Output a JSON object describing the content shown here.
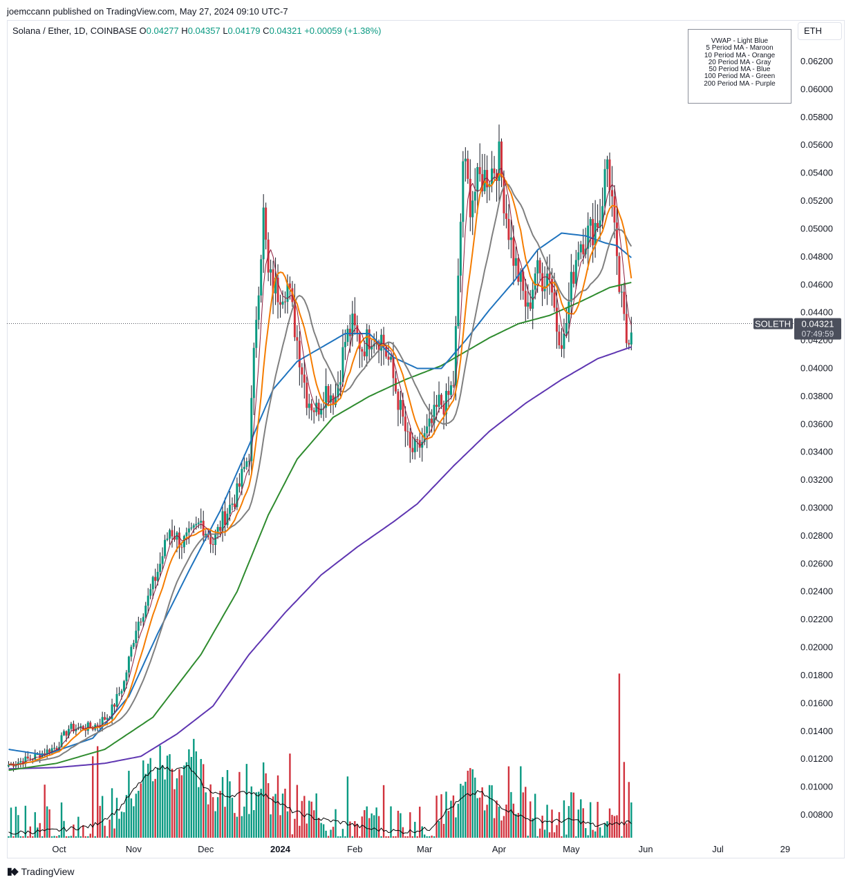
{
  "header": {
    "publisher": "joemccann published on TradingView.com, May 27, 2024 09:10 UTC-7"
  },
  "ohlc": {
    "symbol": "Solana / Ether, 1D, COINBASE",
    "open_label": "O",
    "open": "0.04277",
    "high_label": "H",
    "high": "0.04357",
    "low_label": "L",
    "low": "0.04179",
    "close_label": "C",
    "close": "0.04321",
    "change": "+0.00059 (+1.38%)"
  },
  "currency": "ETH",
  "legend": [
    "VWAP - Light Blue",
    "5 Period MA - Maroon",
    "10 Period MA - Orange",
    "20 Period MA - Gray",
    "50 Period MA - Blue",
    "100 Period MA - Green",
    "200 Period MA - Purple"
  ],
  "price_tag": {
    "ticker": "SOLETH",
    "price": "0.04321",
    "countdown": "07:49:59"
  },
  "footer": {
    "brand": "TradingView",
    "icon": "tradingview-logo-icon"
  },
  "colors": {
    "up": "#089981",
    "down": "#d1323d",
    "ma5": "#8b1a3a",
    "ma10": "#f57c00",
    "ma20": "#7f7f7f",
    "ma50": "#1e73be",
    "ma100": "#2e8b2e",
    "ma200": "#5e35b1",
    "volume_ma": "#000000"
  },
  "chart_data": {
    "type": "candlestick",
    "symbol": "SOLETH",
    "ylim": [
      0.0072,
      0.0653
    ],
    "y_ticks": [
      "0.06200",
      "0.06000",
      "0.05800",
      "0.05600",
      "0.05400",
      "0.05200",
      "0.05000",
      "0.04800",
      "0.04600",
      "0.04400",
      "0.04200",
      "0.04000",
      "0.03800",
      "0.03600",
      "0.03400",
      "0.03200",
      "0.03000",
      "0.02800",
      "0.02600",
      "0.02400",
      "0.02200",
      "0.02000",
      "0.01800",
      "0.01600",
      "0.01400",
      "0.01200",
      "0.01000",
      "0.00800"
    ],
    "x_range_days": [
      0,
      272
    ],
    "x_ticks": [
      {
        "label": "Oct",
        "day": 21
      },
      {
        "label": "Nov",
        "day": 52
      },
      {
        "label": "Dec",
        "day": 82
      },
      {
        "label": "2024",
        "day": 113
      },
      {
        "label": "Feb",
        "day": 144
      },
      {
        "label": "Mar",
        "day": 173
      },
      {
        "label": "Apr",
        "day": 204
      },
      {
        "label": "May",
        "day": 234
      },
      {
        "label": "Jun",
        "day": 265
      }
    ],
    "x_ticks_future": [
      {
        "label": "Jul",
        "day": 295
      },
      {
        "label": "29",
        "day": 323
      }
    ],
    "close_anchors": [
      [
        0,
        0.0116
      ],
      [
        10,
        0.0121
      ],
      [
        20,
        0.0129
      ],
      [
        25,
        0.0142
      ],
      [
        35,
        0.0143
      ],
      [
        42,
        0.0152
      ],
      [
        48,
        0.0175
      ],
      [
        53,
        0.0215
      ],
      [
        58,
        0.0235
      ],
      [
        63,
        0.026
      ],
      [
        67,
        0.0285
      ],
      [
        72,
        0.0275
      ],
      [
        76,
        0.028
      ],
      [
        80,
        0.029
      ],
      [
        85,
        0.0275
      ],
      [
        90,
        0.0295
      ],
      [
        95,
        0.031
      ],
      [
        100,
        0.034
      ],
      [
        103,
        0.044
      ],
      [
        106,
        0.051
      ],
      [
        108,
        0.0465
      ],
      [
        112,
        0.0455
      ],
      [
        116,
        0.046
      ],
      [
        120,
        0.042
      ],
      [
        124,
        0.038
      ],
      [
        128,
        0.037
      ],
      [
        132,
        0.0385
      ],
      [
        136,
        0.038
      ],
      [
        140,
        0.042
      ],
      [
        143,
        0.043
      ],
      [
        147,
        0.0415
      ],
      [
        151,
        0.0425
      ],
      [
        155,
        0.0422
      ],
      [
        159,
        0.04
      ],
      [
        163,
        0.037
      ],
      [
        167,
        0.034
      ],
      [
        170,
        0.0342
      ],
      [
        173,
        0.035
      ],
      [
        176,
        0.036
      ],
      [
        179,
        0.0375
      ],
      [
        182,
        0.0375
      ],
      [
        185,
        0.039
      ],
      [
        187,
        0.046
      ],
      [
        189,
        0.055
      ],
      [
        192,
        0.052
      ],
      [
        196,
        0.0535
      ],
      [
        200,
        0.054
      ],
      [
        204,
        0.055
      ],
      [
        207,
        0.051
      ],
      [
        210,
        0.048
      ],
      [
        213,
        0.046
      ],
      [
        216,
        0.044
      ],
      [
        219,
        0.047
      ],
      [
        222,
        0.0465
      ],
      [
        225,
        0.047
      ],
      [
        228,
        0.043
      ],
      [
        231,
        0.042
      ],
      [
        234,
        0.046
      ],
      [
        237,
        0.049
      ],
      [
        240,
        0.0495
      ],
      [
        243,
        0.05
      ],
      [
        246,
        0.051
      ],
      [
        249,
        0.055
      ],
      [
        251,
        0.052
      ],
      [
        253,
        0.047
      ],
      [
        255,
        0.0445
      ],
      [
        257,
        0.042
      ],
      [
        259,
        0.0432
      ]
    ],
    "ma_anchors": {
      "ma50": [
        [
          0,
          0.0127
        ],
        [
          15,
          0.0123
        ],
        [
          35,
          0.0135
        ],
        [
          50,
          0.0165
        ],
        [
          62,
          0.021
        ],
        [
          75,
          0.0255
        ],
        [
          88,
          0.0298
        ],
        [
          100,
          0.0345
        ],
        [
          110,
          0.0385
        ],
        [
          120,
          0.0405
        ],
        [
          130,
          0.0415
        ],
        [
          140,
          0.0425
        ],
        [
          150,
          0.0425
        ],
        [
          160,
          0.0408
        ],
        [
          170,
          0.04
        ],
        [
          180,
          0.04
        ],
        [
          190,
          0.042
        ],
        [
          200,
          0.0442
        ],
        [
          210,
          0.0462
        ],
        [
          220,
          0.0485
        ],
        [
          230,
          0.0497
        ],
        [
          240,
          0.0495
        ],
        [
          248,
          0.049
        ],
        [
          253,
          0.0488
        ],
        [
          260,
          0.0478
        ]
      ],
      "ma100": [
        [
          0,
          0.0112
        ],
        [
          20,
          0.0117
        ],
        [
          40,
          0.0127
        ],
        [
          60,
          0.015
        ],
        [
          80,
          0.0195
        ],
        [
          95,
          0.024
        ],
        [
          108,
          0.0295
        ],
        [
          120,
          0.0335
        ],
        [
          135,
          0.0365
        ],
        [
          150,
          0.038
        ],
        [
          165,
          0.0392
        ],
        [
          180,
          0.0402
        ],
        [
          190,
          0.0412
        ],
        [
          200,
          0.0422
        ],
        [
          212,
          0.0432
        ],
        [
          225,
          0.0438
        ],
        [
          238,
          0.0448
        ],
        [
          250,
          0.0458
        ],
        [
          260,
          0.0462
        ]
      ],
      "ma200": [
        [
          0,
          0.0113
        ],
        [
          20,
          0.0114
        ],
        [
          40,
          0.0117
        ],
        [
          55,
          0.0122
        ],
        [
          70,
          0.0138
        ],
        [
          85,
          0.0158
        ],
        [
          100,
          0.0195
        ],
        [
          115,
          0.0225
        ],
        [
          130,
          0.0252
        ],
        [
          145,
          0.0272
        ],
        [
          160,
          0.029
        ],
        [
          170,
          0.0303
        ],
        [
          185,
          0.033
        ],
        [
          200,
          0.0355
        ],
        [
          215,
          0.0375
        ],
        [
          230,
          0.0392
        ],
        [
          245,
          0.0407
        ],
        [
          260,
          0.0416
        ]
      ]
    },
    "volume": {
      "scale_max": 0.0185,
      "spike_day": 254,
      "spike_value": 0.0183,
      "volume_ma_anchors": [
        [
          0,
          0.0075
        ],
        [
          20,
          0.0077
        ],
        [
          35,
          0.008
        ],
        [
          45,
          0.009
        ],
        [
          55,
          0.011
        ],
        [
          62,
          0.012
        ],
        [
          70,
          0.0118
        ],
        [
          75,
          0.012
        ],
        [
          82,
          0.0105
        ],
        [
          90,
          0.01
        ],
        [
          100,
          0.0103
        ],
        [
          108,
          0.01
        ],
        [
          118,
          0.009
        ],
        [
          128,
          0.0085
        ],
        [
          140,
          0.0082
        ],
        [
          150,
          0.0078
        ],
        [
          165,
          0.0076
        ],
        [
          175,
          0.0078
        ],
        [
          182,
          0.009
        ],
        [
          190,
          0.01
        ],
        [
          196,
          0.0103
        ],
        [
          205,
          0.0093
        ],
        [
          215,
          0.0085
        ],
        [
          225,
          0.0083
        ],
        [
          235,
          0.0084
        ],
        [
          245,
          0.008
        ],
        [
          255,
          0.0082
        ],
        [
          260,
          0.0083
        ]
      ]
    }
  }
}
